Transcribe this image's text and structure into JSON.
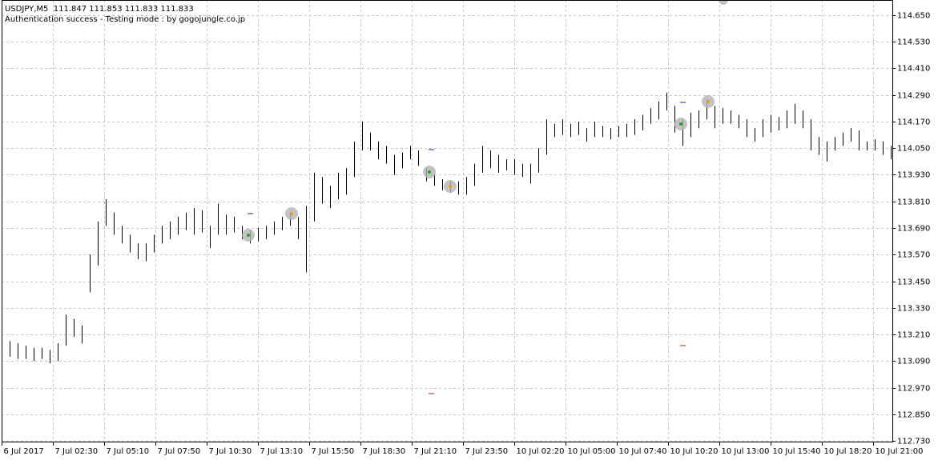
{
  "chart_data": {
    "type": "ohlc",
    "title": "USDJPY,M5  111.847 111.853 111.833 111.833",
    "subtitle": "Authentication success - Testing mode : by gogojungle.co.jp",
    "color": "#000000",
    "grid": true,
    "xlim": [
      0,
      556
    ],
    "ylim": [
      112.727,
      114.718
    ],
    "xticks": [
      {
        "value": 0,
        "label": "6 Jul 2017"
      },
      {
        "value": 32,
        "label": "7 Jul 02:30"
      },
      {
        "value": 64,
        "label": "7 Jul 05:10"
      },
      {
        "value": 96,
        "label": "7 Jul 07:50"
      },
      {
        "value": 128,
        "label": "7 Jul 10:30"
      },
      {
        "value": 160,
        "label": "7 Jul 13:10"
      },
      {
        "value": 192,
        "label": "7 Jul 15:50"
      },
      {
        "value": 224,
        "label": "7 Jul 18:30"
      },
      {
        "value": 256,
        "label": "7 Jul 21:10"
      },
      {
        "value": 288,
        "label": "7 Jul 23:50"
      },
      {
        "value": 320,
        "label": "10 Jul 02:20"
      },
      {
        "value": 352,
        "label": "10 Jul 05:00"
      },
      {
        "value": 384,
        "label": "10 Jul 07:40"
      },
      {
        "value": 416,
        "label": "10 Jul 10:20"
      },
      {
        "value": 448,
        "label": "10 Jul 13:00"
      },
      {
        "value": 480,
        "label": "10 Jul 15:40"
      },
      {
        "value": 512,
        "label": "10 Jul 18:20"
      },
      {
        "value": 544,
        "label": "10 Jul 21:00"
      }
    ],
    "yticks": [
      {
        "value": 114.65,
        "label": "114.650"
      },
      {
        "value": 114.53,
        "label": "114.530"
      },
      {
        "value": 114.41,
        "label": "114.410"
      },
      {
        "value": 114.29,
        "label": "114.290"
      },
      {
        "value": 114.17,
        "label": "114.170"
      },
      {
        "value": 114.05,
        "label": "114.050"
      },
      {
        "value": 113.93,
        "label": "113.930"
      },
      {
        "value": 113.81,
        "label": "113.810"
      },
      {
        "value": 113.69,
        "label": "113.690"
      },
      {
        "value": 113.57,
        "label": "113.570"
      },
      {
        "value": 113.45,
        "label": "113.450"
      },
      {
        "value": 113.33,
        "label": "113.330"
      },
      {
        "value": 113.21,
        "label": "113.210"
      },
      {
        "value": 113.09,
        "label": "113.090"
      },
      {
        "value": 112.97,
        "label": "112.970"
      },
      {
        "value": 112.85,
        "label": "112.850"
      },
      {
        "value": 112.73,
        "label": "112.730"
      }
    ],
    "x": [
      0,
      5,
      10,
      15,
      20,
      25,
      30,
      35,
      40,
      45,
      50,
      55,
      60,
      65,
      70,
      75,
      80,
      85,
      90,
      95,
      100,
      105,
      110,
      115,
      120,
      125,
      130,
      135,
      140,
      145,
      150,
      155,
      160,
      165,
      170,
      175,
      180,
      185,
      190,
      195,
      200,
      205,
      210,
      215,
      220,
      225,
      230,
      235,
      240,
      245,
      250,
      255,
      260,
      265,
      270,
      275,
      280,
      285,
      290,
      295,
      300,
      305,
      310,
      315,
      320,
      325,
      330,
      335,
      340,
      345,
      350,
      355,
      360,
      365,
      370,
      375,
      380,
      385,
      390,
      395,
      400,
      405,
      410,
      415,
      420,
      425,
      430,
      435,
      440,
      445,
      450,
      455,
      460,
      465,
      470,
      475,
      480,
      485,
      490,
      495,
      500,
      505,
      510,
      515,
      520,
      525,
      530,
      535,
      540,
      545,
      550,
      555
    ],
    "high": [
      113.2,
      113.18,
      113.17,
      113.16,
      113.15,
      113.15,
      113.14,
      113.17,
      113.3,
      113.28,
      113.25,
      113.57,
      113.72,
      113.82,
      113.76,
      113.7,
      113.66,
      113.62,
      113.62,
      113.66,
      113.7,
      113.72,
      113.74,
      113.76,
      113.78,
      113.77,
      113.7,
      113.8,
      113.75,
      113.74,
      113.7,
      113.68,
      113.69,
      113.7,
      113.72,
      113.74,
      113.76,
      113.74,
      113.79,
      113.94,
      113.92,
      113.88,
      113.94,
      113.96,
      114.08,
      114.17,
      114.12,
      114.08,
      114.06,
      114.02,
      114.03,
      114.06,
      114.04,
      113.96,
      113.93,
      113.91,
      113.9,
      113.9,
      113.92,
      113.98,
      114.06,
      114.04,
      114.02,
      114.0,
      114.0,
      113.98,
      113.98,
      114.05,
      114.18,
      114.16,
      114.18,
      114.16,
      114.17,
      114.14,
      114.17,
      114.15,
      114.14,
      114.15,
      114.16,
      114.18,
      114.2,
      114.23,
      114.26,
      114.3,
      114.24,
      114.18,
      114.21,
      114.22,
      114.27,
      114.24,
      114.23,
      114.22,
      114.2,
      114.18,
      114.14,
      114.18,
      114.2,
      114.19,
      114.22,
      114.25,
      114.22,
      114.18,
      114.1,
      114.08,
      114.1,
      114.12,
      114.14,
      114.13,
      114.08,
      114.09,
      114.08,
      114.06
    ],
    "low": [
      113.12,
      113.11,
      113.1,
      113.1,
      113.09,
      113.1,
      113.08,
      113.09,
      113.16,
      113.2,
      113.17,
      113.4,
      113.52,
      113.7,
      113.66,
      113.62,
      113.58,
      113.55,
      113.54,
      113.58,
      113.62,
      113.64,
      113.66,
      113.68,
      113.66,
      113.67,
      113.6,
      113.66,
      113.66,
      113.67,
      113.64,
      113.62,
      113.63,
      113.64,
      113.66,
      113.68,
      113.7,
      113.64,
      113.49,
      113.72,
      113.8,
      113.78,
      113.82,
      113.84,
      113.92,
      114.04,
      114.04,
      114.0,
      113.98,
      113.93,
      113.96,
      114.0,
      113.97,
      113.9,
      113.88,
      113.86,
      113.85,
      113.84,
      113.84,
      113.88,
      113.94,
      113.96,
      113.94,
      113.95,
      113.93,
      113.92,
      113.89,
      113.94,
      114.02,
      114.1,
      114.11,
      114.1,
      114.11,
      114.08,
      114.1,
      114.1,
      114.09,
      114.1,
      114.1,
      114.11,
      114.13,
      114.16,
      114.18,
      114.22,
      114.12,
      114.06,
      114.1,
      114.14,
      114.18,
      114.14,
      114.16,
      114.16,
      114.14,
      114.1,
      114.08,
      114.1,
      114.12,
      114.13,
      114.14,
      114.16,
      114.14,
      114.04,
      114.02,
      113.99,
      114.04,
      114.06,
      114.08,
      114.04,
      114.04,
      114.04,
      114.02,
      114.0
    ]
  }
}
